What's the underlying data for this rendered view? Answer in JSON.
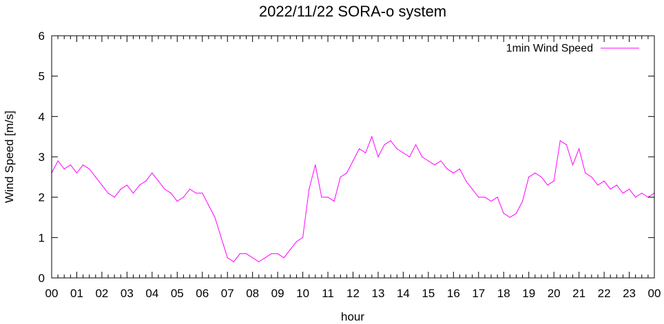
{
  "chart_data": {
    "type": "line",
    "title": "2022/11/22 SORA-o system",
    "xlabel": "hour",
    "ylabel": "Wind Speed [m/s]",
    "xlim": [
      0,
      24
    ],
    "ylim": [
      0,
      6
    ],
    "x_tick_labels": [
      "00",
      "01",
      "02",
      "03",
      "04",
      "05",
      "06",
      "07",
      "08",
      "09",
      "10",
      "11",
      "12",
      "13",
      "14",
      "15",
      "16",
      "17",
      "18",
      "19",
      "20",
      "21",
      "22",
      "23",
      "00"
    ],
    "y_tick_labels": [
      "0",
      "1",
      "2",
      "3",
      "4",
      "5",
      "6"
    ],
    "legend_position": "top-right",
    "grid": false,
    "series": [
      {
        "name": "1min Wind Speed",
        "color": "#ff00ff",
        "x": [
          0.0,
          0.25,
          0.5,
          0.75,
          1.0,
          1.25,
          1.5,
          1.75,
          2.0,
          2.25,
          2.5,
          2.75,
          3.0,
          3.25,
          3.5,
          3.75,
          4.0,
          4.25,
          4.5,
          4.75,
          5.0,
          5.25,
          5.5,
          5.75,
          6.0,
          6.25,
          6.5,
          6.75,
          7.0,
          7.25,
          7.5,
          7.75,
          8.0,
          8.25,
          8.5,
          8.75,
          9.0,
          9.25,
          9.5,
          9.75,
          10.0,
          10.25,
          10.5,
          10.75,
          11.0,
          11.25,
          11.5,
          11.75,
          12.0,
          12.25,
          12.5,
          12.75,
          13.0,
          13.25,
          13.5,
          13.75,
          14.0,
          14.25,
          14.5,
          14.75,
          15.0,
          15.25,
          15.5,
          15.75,
          16.0,
          16.25,
          16.5,
          16.75,
          17.0,
          17.25,
          17.5,
          17.75,
          18.0,
          18.25,
          18.5,
          18.75,
          19.0,
          19.25,
          19.5,
          19.75,
          20.0,
          20.25,
          20.5,
          20.75,
          21.0,
          21.25,
          21.5,
          21.75,
          22.0,
          22.25,
          22.5,
          22.75,
          23.0,
          23.25,
          23.5,
          23.75,
          24.0
        ],
        "values": [
          2.6,
          2.9,
          2.7,
          2.8,
          2.6,
          2.8,
          2.7,
          2.5,
          2.3,
          2.1,
          2.0,
          2.2,
          2.3,
          2.1,
          2.3,
          2.4,
          2.6,
          2.4,
          2.2,
          2.1,
          1.9,
          2.0,
          2.2,
          2.1,
          2.1,
          1.8,
          1.5,
          1.0,
          0.5,
          0.4,
          0.6,
          0.6,
          0.5,
          0.4,
          0.5,
          0.6,
          0.6,
          0.5,
          0.7,
          0.9,
          1.0,
          2.2,
          2.8,
          2.0,
          2.0,
          1.9,
          2.5,
          2.6,
          2.9,
          3.2,
          3.1,
          3.5,
          3.0,
          3.3,
          3.4,
          3.2,
          3.1,
          3.0,
          3.3,
          3.0,
          2.9,
          2.8,
          2.9,
          2.7,
          2.6,
          2.7,
          2.4,
          2.2,
          2.0,
          2.0,
          1.9,
          2.0,
          1.6,
          1.5,
          1.6,
          1.9,
          2.5,
          2.6,
          2.5,
          2.3,
          2.4,
          3.4,
          3.3,
          2.8,
          3.2,
          2.6,
          2.5,
          2.3,
          2.4,
          2.2,
          2.3,
          2.1,
          2.2,
          2.0,
          2.1,
          2.0,
          2.1
        ]
      }
    ]
  }
}
